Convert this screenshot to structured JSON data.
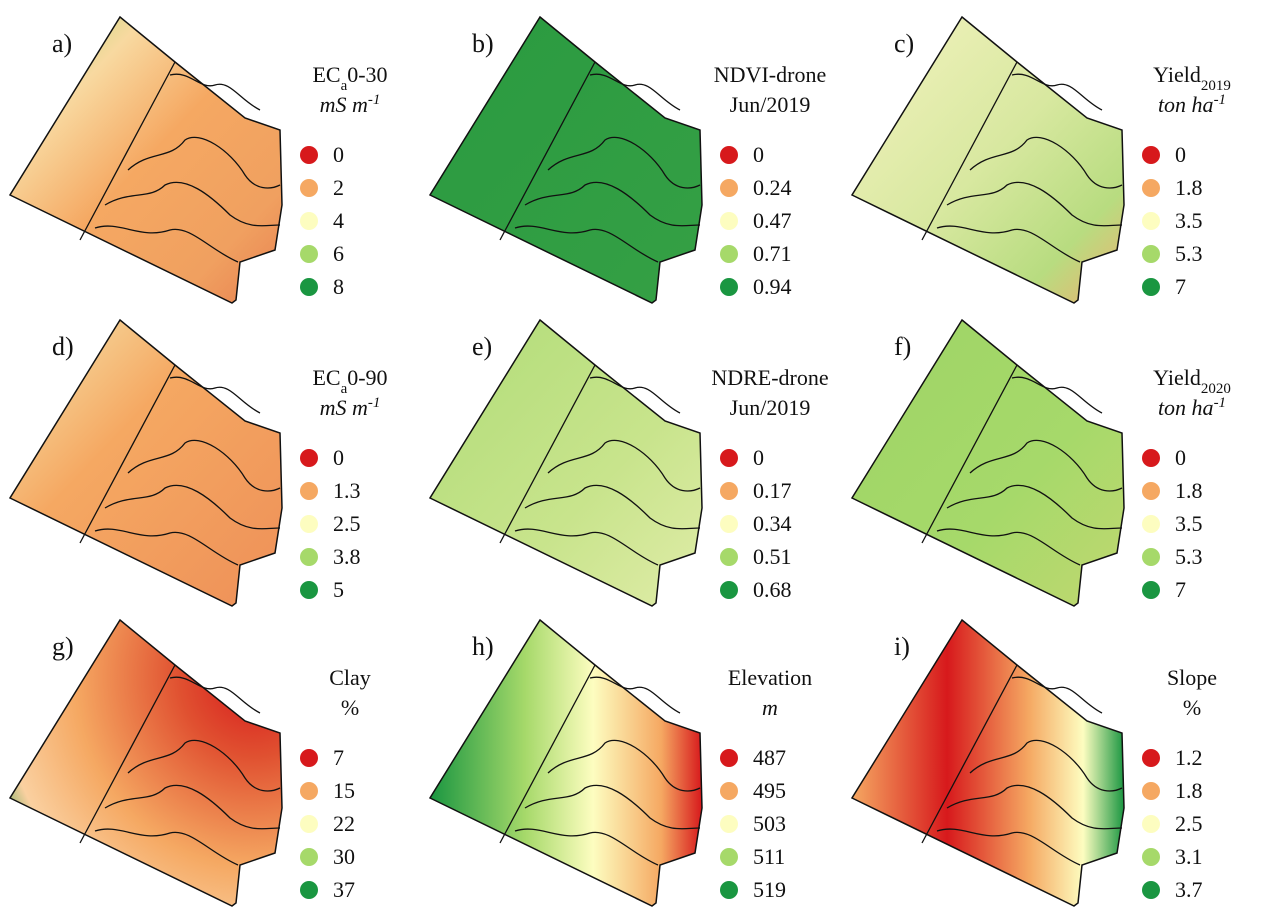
{
  "legend_colors": [
    "#d7191c",
    "#f5a862",
    "#fdfdc0",
    "#a6d96a",
    "#1a9641"
  ],
  "panels": [
    {
      "label": "a)",
      "title": [
        {
          "text": "EC"
        },
        {
          "text": "a",
          "sub": true
        },
        {
          "text": "0-30"
        }
      ],
      "unit": [
        {
          "text": "mS m",
          "italic": true
        },
        {
          "text": "-1",
          "sup": true,
          "italic": true
        }
      ],
      "legend": [
        "0",
        "2",
        "4",
        "6",
        "8"
      ]
    },
    {
      "label": "b)",
      "title": [
        {
          "text": "NDVI-drone"
        }
      ],
      "unit": [
        {
          "text": "Jun/2019"
        }
      ],
      "legend": [
        "0",
        "0.24",
        "0.47",
        "0.71",
        "0.94"
      ]
    },
    {
      "label": "c)",
      "title": [
        {
          "text": "Yield"
        },
        {
          "text": "2019",
          "sub": true
        }
      ],
      "unit": [
        {
          "text": "ton ha",
          "italic": true
        },
        {
          "text": "-1",
          "sup": true,
          "italic": true
        }
      ],
      "legend": [
        "0",
        "1.8",
        "3.5",
        "5.3",
        "7"
      ]
    },
    {
      "label": "d)",
      "title": [
        {
          "text": "EC"
        },
        {
          "text": "a",
          "sub": true
        },
        {
          "text": "0-90"
        }
      ],
      "unit": [
        {
          "text": "mS m",
          "italic": true
        },
        {
          "text": "-1",
          "sup": true,
          "italic": true
        }
      ],
      "legend": [
        "0",
        "1.3",
        "2.5",
        "3.8",
        "5"
      ]
    },
    {
      "label": "e)",
      "title": [
        {
          "text": "NDRE-drone"
        }
      ],
      "unit": [
        {
          "text": "Jun/2019"
        }
      ],
      "legend": [
        "0",
        "0.17",
        "0.34",
        "0.51",
        "0.68"
      ]
    },
    {
      "label": "f)",
      "title": [
        {
          "text": "Yield"
        },
        {
          "text": "2020",
          "sub": true
        }
      ],
      "unit": [
        {
          "text": "ton ha",
          "italic": true
        },
        {
          "text": "-1",
          "sup": true,
          "italic": true
        }
      ],
      "legend": [
        "0",
        "1.8",
        "3.5",
        "5.3",
        "7"
      ]
    },
    {
      "label": "g)",
      "title": [
        {
          "text": "Clay"
        }
      ],
      "unit": [
        {
          "text": "%"
        }
      ],
      "legend": [
        "7",
        "15",
        "22",
        "30",
        "37"
      ]
    },
    {
      "label": "h)",
      "title": [
        {
          "text": "Elevation"
        }
      ],
      "unit": [
        {
          "text": "m",
          "italic": true
        }
      ],
      "legend": [
        "487",
        "495",
        "503",
        "511",
        "519"
      ]
    },
    {
      "label": "i)",
      "title": [
        {
          "text": "Slope"
        }
      ],
      "unit": [
        {
          "text": "%"
        }
      ],
      "legend": [
        "1.2",
        "1.8",
        "2.5",
        "3.1",
        "3.7"
      ]
    }
  ]
}
